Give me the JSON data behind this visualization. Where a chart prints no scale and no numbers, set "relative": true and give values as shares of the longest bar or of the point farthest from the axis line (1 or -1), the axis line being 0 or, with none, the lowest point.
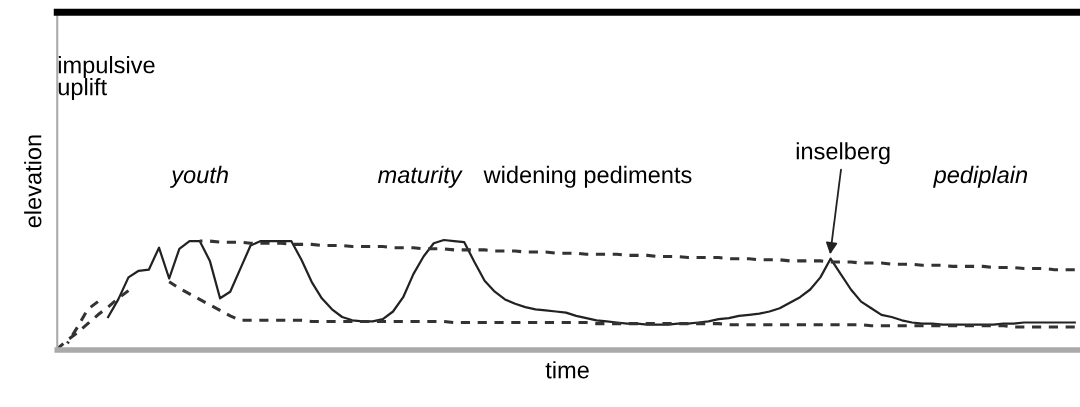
{
  "chart_data": {
    "type": "line",
    "relative": true,
    "xlabel": "time",
    "ylabel": "elevation",
    "tick_labels": false,
    "legend": false,
    "marker": "none",
    "categories": [
      null,
      null,
      null,
      null,
      null,
      null,
      null,
      null,
      null,
      null,
      null,
      null,
      null,
      null,
      null,
      null,
      null,
      null,
      null,
      null,
      null,
      null,
      null,
      null,
      null,
      null,
      null,
      null,
      null,
      null,
      null,
      null,
      null,
      null,
      null,
      null,
      null,
      null,
      null,
      null,
      null,
      null,
      null,
      null,
      null,
      null,
      null,
      null,
      null,
      null,
      null,
      null,
      null,
      null,
      null,
      null,
      null,
      null,
      null,
      null,
      null,
      null,
      null,
      null,
      null,
      null,
      null,
      null,
      null,
      null,
      null,
      null,
      null,
      null,
      null,
      null,
      null,
      null,
      null,
      null,
      null,
      null,
      null,
      null,
      null,
      null,
      null,
      null,
      null,
      null,
      null,
      null,
      null,
      null,
      null,
      null,
      null,
      null,
      null,
      null,
      null
    ],
    "series": [
      {
        "color": "#222222",
        "line_style": "solid",
        "values": [
          null,
          null,
          null,
          null,
          null,
          0.3,
          0.46,
          0.66,
          0.72,
          0.73,
          0.93,
          0.65,
          0.92,
          0.99,
          0.99,
          0.81,
          0.47,
          0.53,
          0.74,
          0.95,
          0.99,
          0.99,
          0.99,
          0.99,
          0.82,
          0.62,
          0.47,
          0.37,
          0.3,
          0.27,
          0.26,
          0.26,
          0.28,
          0.35,
          0.48,
          0.69,
          0.85,
          0.97,
          1.0,
          0.99,
          0.98,
          0.8,
          0.63,
          0.53,
          0.46,
          0.42,
          0.39,
          0.37,
          0.36,
          0.35,
          0.34,
          0.31,
          0.29,
          0.27,
          0.26,
          0.25,
          0.24,
          0.24,
          0.23,
          0.23,
          0.23,
          0.24,
          0.24,
          0.25,
          0.26,
          0.28,
          0.29,
          0.31,
          0.32,
          0.33,
          0.35,
          0.38,
          0.43,
          0.48,
          0.55,
          0.66,
          0.83,
          0.69,
          0.55,
          0.44,
          0.38,
          0.32,
          0.3,
          0.27,
          0.25,
          0.24,
          0.24,
          0.23,
          0.23,
          0.23,
          0.23,
          0.23,
          0.23,
          0.24,
          0.24,
          0.25,
          0.25,
          0.25,
          0.25,
          0.25,
          0.25
        ]
      },
      {
        "color": "#333333",
        "line_style": "dashed",
        "values": [
          null,
          null,
          null,
          null,
          null,
          null,
          null,
          null,
          null,
          null,
          null,
          null,
          null,
          null,
          0.99,
          0.99,
          0.98,
          0.98,
          0.98,
          0.97,
          0.97,
          0.97,
          0.97,
          0.96,
          0.96,
          0.96,
          0.95,
          0.95,
          0.95,
          0.94,
          0.94,
          0.94,
          0.94,
          0.93,
          0.93,
          0.93,
          0.92,
          0.92,
          0.92,
          0.91,
          0.91,
          0.91,
          0.91,
          0.9,
          0.9,
          0.9,
          0.89,
          0.89,
          0.89,
          0.88,
          0.88,
          0.88,
          0.87,
          0.87,
          0.87,
          0.87,
          0.86,
          0.86,
          0.86,
          0.85,
          0.85,
          0.85,
          0.84,
          0.84,
          0.84,
          0.84,
          0.83,
          0.83,
          0.83,
          0.82,
          0.82,
          0.82,
          0.81,
          0.81,
          0.81,
          0.81,
          0.8,
          0.8,
          0.8,
          0.79,
          0.79,
          0.79,
          0.78,
          0.78,
          0.78,
          0.77,
          0.77,
          0.77,
          0.76,
          0.76,
          0.76,
          0.76,
          0.75,
          0.75,
          0.75,
          0.74,
          0.74,
          0.74,
          0.73,
          0.73,
          0.73
        ]
      },
      {
        "color": "#333333",
        "line_style": "dashed",
        "values": [
          null,
          null,
          null,
          null,
          null,
          null,
          null,
          null,
          null,
          null,
          null,
          0.62,
          0.56,
          0.51,
          0.46,
          0.41,
          0.36,
          0.31,
          0.27,
          0.27,
          0.27,
          0.27,
          0.27,
          0.27,
          0.27,
          0.26,
          0.26,
          0.26,
          0.26,
          0.26,
          0.26,
          0.26,
          0.26,
          0.26,
          0.26,
          0.26,
          0.26,
          0.26,
          0.26,
          0.25,
          0.25,
          0.25,
          0.25,
          0.25,
          0.25,
          0.25,
          0.25,
          0.25,
          0.25,
          0.25,
          0.25,
          0.25,
          0.25,
          0.24,
          0.24,
          0.24,
          0.24,
          0.24,
          0.24,
          0.24,
          0.24,
          0.24,
          0.24,
          0.24,
          0.24,
          0.24,
          0.23,
          0.23,
          0.23,
          0.23,
          0.23,
          0.23,
          0.23,
          0.23,
          0.23,
          0.23,
          0.23,
          0.23,
          0.23,
          0.23,
          0.22,
          0.22,
          0.22,
          0.22,
          0.22,
          0.22,
          0.22,
          0.22,
          0.22,
          0.22,
          0.22,
          0.22,
          0.22,
          0.22,
          0.21,
          0.21,
          0.21,
          0.21,
          0.21,
          0.21,
          0.21
        ]
      },
      {
        "color": "#333333",
        "line_style": "dashed",
        "values": [
          0.01,
          0.09,
          0.16,
          0.24,
          0.32,
          0.39,
          0.47,
          0.54,
          null,
          null,
          null,
          null,
          null,
          null,
          null,
          null,
          null,
          null,
          null,
          null,
          null,
          null,
          null,
          null,
          null,
          null,
          null,
          null,
          null,
          null,
          null,
          null,
          null,
          null,
          null,
          null,
          null,
          null,
          null,
          null,
          null,
          null,
          null,
          null,
          null,
          null,
          null,
          null,
          null,
          null,
          null,
          null,
          null,
          null,
          null,
          null,
          null,
          null,
          null,
          null,
          null,
          null,
          null,
          null,
          null,
          null,
          null,
          null,
          null,
          null,
          null,
          null,
          null,
          null,
          null,
          null,
          null,
          null,
          null,
          null,
          null,
          null,
          null,
          null,
          null,
          null,
          null,
          null,
          null,
          null,
          null,
          null,
          null,
          null,
          null,
          null,
          null,
          null,
          null,
          null,
          null
        ]
      },
      {
        "color": "#333333",
        "line_style": "dashed",
        "values": [
          null,
          0.06,
          0.21,
          0.37,
          0.44,
          null,
          null,
          null,
          null,
          null,
          null,
          null,
          null,
          null,
          null,
          null,
          null,
          null,
          null,
          null,
          null,
          null,
          null,
          null,
          null,
          null,
          null,
          null,
          null,
          null,
          null,
          null,
          null,
          null,
          null,
          null,
          null,
          null,
          null,
          null,
          null,
          null,
          null,
          null,
          null,
          null,
          null,
          null,
          null,
          null,
          null,
          null,
          null,
          null,
          null,
          null,
          null,
          null,
          null,
          null,
          null,
          null,
          null,
          null,
          null,
          null,
          null,
          null,
          null,
          null,
          null,
          null,
          null,
          null,
          null,
          null,
          null,
          null,
          null,
          null,
          null,
          null,
          null,
          null,
          null,
          null,
          null,
          null,
          null,
          null,
          null,
          null,
          null,
          null,
          null,
          null,
          null,
          null,
          null,
          null,
          null
        ]
      }
    ],
    "annotations": [
      "impulsive\nuplift",
      "youth",
      "maturity",
      "widening pediments",
      "pediplain",
      "inselberg"
    ]
  }
}
